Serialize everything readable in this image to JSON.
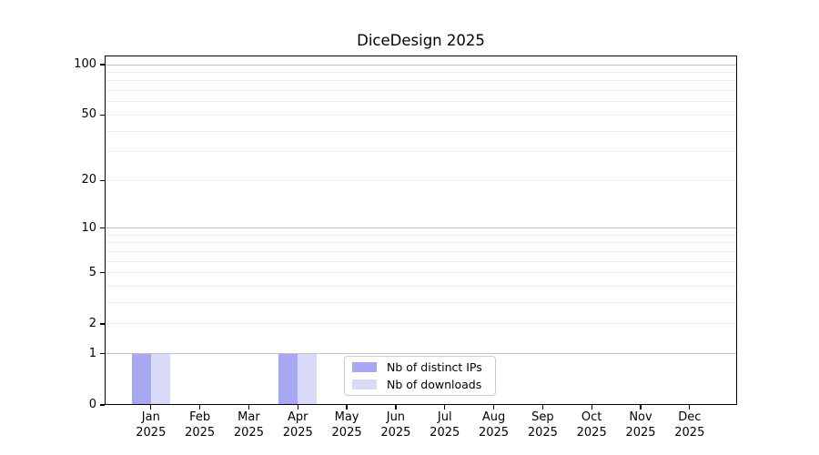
{
  "chart_data": {
    "type": "bar",
    "title": "DiceDesign 2025",
    "x_categories": [
      "Jan",
      "Feb",
      "Mar",
      "Apr",
      "May",
      "Jun",
      "Jul",
      "Aug",
      "Sep",
      "Oct",
      "Nov",
      "Dec"
    ],
    "x_year_label": "2025",
    "series": [
      {
        "name": "Nb of distinct IPs",
        "color": "#a8a8f2",
        "values": [
          1,
          0,
          0,
          1,
          0,
          0,
          0,
          0,
          0,
          0,
          0,
          0
        ]
      },
      {
        "name": "Nb of downloads",
        "color": "#d9d9f8",
        "values": [
          1,
          0,
          0,
          1,
          0,
          0,
          0,
          0,
          0,
          0,
          0,
          0
        ]
      }
    ],
    "yscale": "log1p",
    "ylim": [
      0,
      114
    ],
    "yticks": [
      0,
      1,
      2,
      5,
      10,
      20,
      50,
      100
    ],
    "grid": {
      "major": [
        1,
        10,
        100
      ],
      "minor": [
        2,
        3,
        4,
        5,
        6,
        7,
        8,
        9,
        20,
        30,
        40,
        50,
        60,
        70,
        80,
        90
      ]
    },
    "legend": {
      "position": "lower center"
    },
    "colors": {
      "background": "#ffffff",
      "spine": "#000000",
      "text": "#000000",
      "grid_major": "#c1c1c1",
      "grid_minor": "#ededed"
    }
  }
}
